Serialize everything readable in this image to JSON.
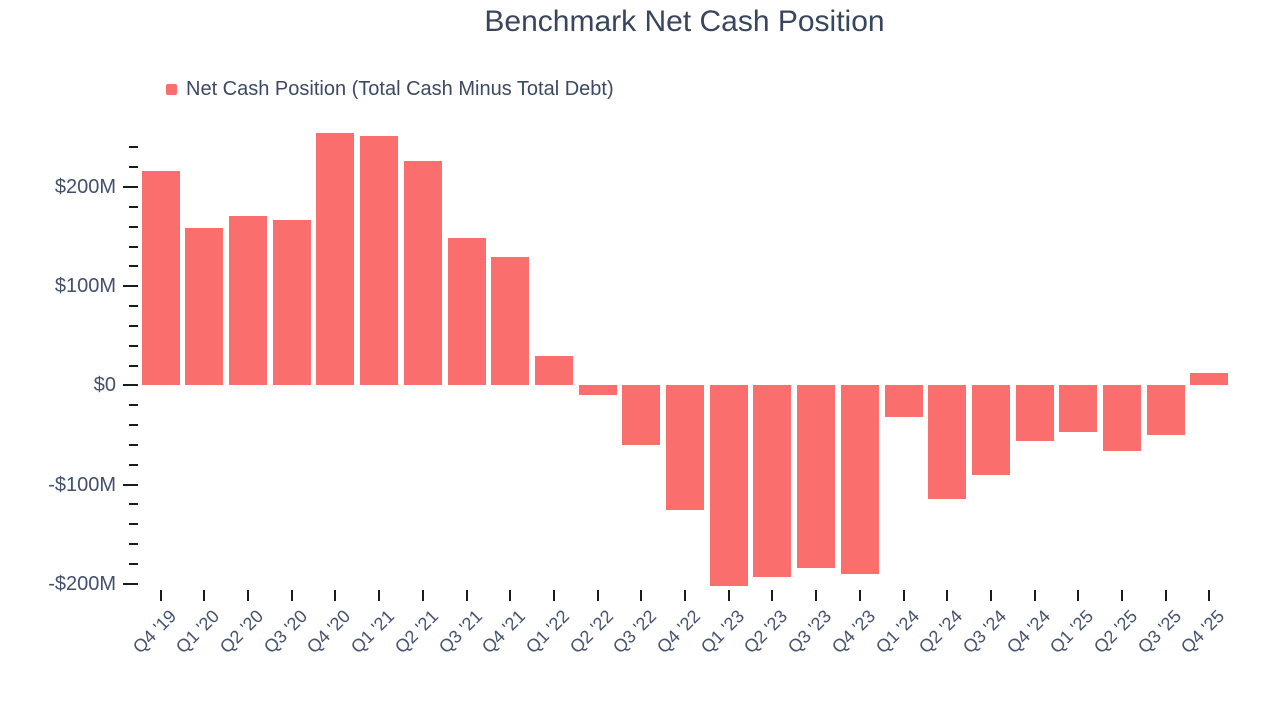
{
  "title": "Benchmark Net Cash Position",
  "legend": {
    "label": "Net Cash Position (Total Cash Minus Total Debt)"
  },
  "colors": {
    "bar": "#FB6E6E",
    "title_text": "#38455C",
    "axis_text": "#45526D",
    "tick": "#171B24",
    "background": "#ffffff"
  },
  "chart_data": {
    "type": "bar",
    "title": "Benchmark Net Cash Position",
    "series_name": "Net Cash Position (Total Cash Minus Total Debt)",
    "unit": "USD millions",
    "xlabel": "",
    "ylabel": "",
    "grid": false,
    "legend_position": "top-left",
    "bar_color": "#FB6E6E",
    "categories": [
      "Q4 '19",
      "Q1 '20",
      "Q2 '20",
      "Q3 '20",
      "Q4 '20",
      "Q1 '21",
      "Q2 '21",
      "Q3 '21",
      "Q4 '21",
      "Q1 '22",
      "Q2 '22",
      "Q3 '22",
      "Q4 '22",
      "Q1 '23",
      "Q2 '23",
      "Q3 '23",
      "Q4 '23",
      "Q1 '24",
      "Q2 '24",
      "Q3 '24",
      "Q4 '24",
      "Q1 '25",
      "Q2 '25",
      "Q3 '25",
      "Q4 '25"
    ],
    "values": [
      216,
      159,
      171,
      167,
      255,
      252,
      226,
      149,
      130,
      30,
      -10,
      -60,
      -126,
      -202,
      -193,
      -184,
      -190,
      -32,
      -115,
      -90,
      -56,
      -47,
      -66,
      -50,
      13
    ],
    "y_axis": {
      "min": -200,
      "max": 240,
      "major_step": 100,
      "minor_step": 20,
      "tick_labels": [
        {
          "value": 200,
          "label": "$200M"
        },
        {
          "value": 100,
          "label": "$100M"
        },
        {
          "value": 0,
          "label": "$0"
        },
        {
          "value": -100,
          "label": "-$100M"
        },
        {
          "value": -200,
          "label": "-$200M"
        }
      ]
    }
  }
}
